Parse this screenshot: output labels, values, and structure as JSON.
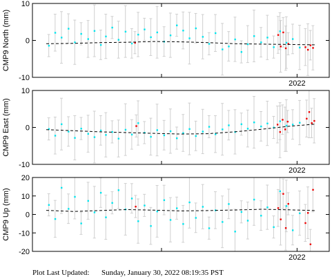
{
  "colors": {
    "normal_point": "#00e5ee",
    "recent_point": "#ee0000",
    "error_bar": "#cfcfcf",
    "trend_line": "#000000"
  },
  "footer": {
    "label": "Plot Last Updated:",
    "timestamp": "Sunday, January 30, 2022 08:19:35 PST"
  },
  "chart_data": [
    {
      "type": "scatter",
      "ylabel": "CMP9 North (mm)",
      "ylim": [
        -10,
        10
      ],
      "yticks": [
        10,
        0,
        -10
      ],
      "x_tick_label": "2022",
      "x_range": [
        "2020-12-01",
        "2022-01-30"
      ],
      "grid": false,
      "error_bars": true,
      "trend_line": "dashed",
      "series": [
        {
          "values": [
            [
              "2020-12-05",
              -1.4
            ],
            [
              "2020-12-15",
              2.1
            ],
            [
              "2020-12-25",
              0.8
            ],
            [
              "2021-01-05",
              3.2
            ],
            [
              "2021-01-15",
              -0.5
            ],
            [
              "2021-01-25",
              1.8
            ],
            [
              "2021-02-05",
              0.4
            ],
            [
              "2021-02-15",
              2.6
            ],
            [
              "2021-02-25",
              -1.2
            ],
            [
              "2021-03-05",
              1.1
            ],
            [
              "2021-03-15",
              3.5
            ],
            [
              "2021-03-25",
              0.2
            ],
            [
              "2021-04-05",
              2.4
            ],
            [
              "2021-04-15",
              -0.8
            ],
            [
              "2021-04-25",
              1.6
            ],
            [
              "2021-05-05",
              3.0
            ],
            [
              "2021-05-15",
              0.9
            ],
            [
              "2021-05-25",
              2.2
            ],
            [
              "2021-06-05",
              -0.3
            ],
            [
              "2021-06-15",
              1.4
            ],
            [
              "2021-06-25",
              4.1
            ],
            [
              "2021-07-05",
              2.7
            ],
            [
              "2021-07-15",
              0.6
            ],
            [
              "2021-07-25",
              3.3
            ],
            [
              "2021-08-05",
              1.0
            ],
            [
              "2021-08-15",
              -0.9
            ],
            [
              "2021-08-25",
              2.0
            ],
            [
              "2021-09-05",
              -2.4
            ],
            [
              "2021-09-15",
              -1.6
            ],
            [
              "2021-09-25",
              0.3
            ],
            [
              "2021-10-05",
              -3.1
            ],
            [
              "2021-10-15",
              -1.0
            ],
            [
              "2021-10-25",
              1.2
            ],
            [
              "2021-11-05",
              -0.5
            ],
            [
              "2021-11-15",
              0.8
            ],
            [
              "2021-11-25",
              -1.8
            ],
            [
              "2021-12-05",
              2.5
            ],
            [
              "2021-12-15",
              -0.6
            ],
            [
              "2021-12-25",
              0.4
            ],
            [
              "2022-01-05",
              -1.9
            ]
          ]
        },
        {
          "values": [
            [
              "2021-04-20",
              -0.6
            ],
            [
              "2021-12-02",
              1.5
            ],
            [
              "2021-12-06",
              -1.6
            ],
            [
              "2021-12-10",
              2.2
            ],
            [
              "2021-12-14",
              -2.1
            ],
            [
              "2021-12-18",
              -0.9
            ],
            [
              "2022-01-14",
              -1.8
            ],
            [
              "2022-01-18",
              -2.5
            ],
            [
              "2022-01-22",
              -1.3
            ],
            [
              "2022-01-26",
              -2.0
            ]
          ]
        }
      ],
      "trend": [
        -0.9,
        -0.8,
        -0.6,
        -0.5,
        -0.3,
        -0.4,
        -0.6,
        -0.9,
        -1.0,
        -1.1,
        -1.2
      ]
    },
    {
      "type": "scatter",
      "ylabel": "CMP9 East (mm)",
      "ylim": [
        -10,
        10
      ],
      "yticks": [
        10,
        0,
        -10
      ],
      "x_tick_label": "2022",
      "x_range": [
        "2020-12-01",
        "2022-01-30"
      ],
      "grid": false,
      "error_bars": true,
      "trend_line": "dashed",
      "series": [
        {
          "values": [
            [
              "2020-12-05",
              -0.4
            ],
            [
              "2020-12-15",
              -2.2
            ],
            [
              "2020-12-25",
              0.9
            ],
            [
              "2021-01-05",
              -1.1
            ],
            [
              "2021-01-15",
              -2.8
            ],
            [
              "2021-01-25",
              -0.3
            ],
            [
              "2021-02-05",
              -1.7
            ],
            [
              "2021-02-15",
              -2.6
            ],
            [
              "2021-02-25",
              -0.8
            ],
            [
              "2021-03-05",
              -2.0
            ],
            [
              "2021-03-15",
              -1.2
            ],
            [
              "2021-03-25",
              -3.0
            ],
            [
              "2021-04-05",
              -0.6
            ],
            [
              "2021-04-15",
              -1.9
            ],
            [
              "2021-04-25",
              1.2
            ],
            [
              "2021-05-05",
              -1.4
            ],
            [
              "2021-05-15",
              -2.5
            ],
            [
              "2021-05-25",
              -0.7
            ],
            [
              "2021-06-05",
              -2.1
            ],
            [
              "2021-06-15",
              -1.0
            ],
            [
              "2021-06-25",
              -2.9
            ],
            [
              "2021-07-05",
              -1.5
            ],
            [
              "2021-07-15",
              -0.4
            ],
            [
              "2021-07-25",
              -2.3
            ],
            [
              "2021-08-05",
              -1.1
            ],
            [
              "2021-08-15",
              0.2
            ],
            [
              "2021-08-25",
              -1.8
            ],
            [
              "2021-09-05",
              -0.5
            ],
            [
              "2021-09-15",
              0.6
            ],
            [
              "2021-09-25",
              -1.2
            ],
            [
              "2021-10-05",
              0.9
            ],
            [
              "2021-10-15",
              -0.3
            ],
            [
              "2021-10-25",
              1.4
            ],
            [
              "2021-11-05",
              0.3
            ],
            [
              "2021-11-15",
              1.1
            ],
            [
              "2021-11-25",
              0.0
            ],
            [
              "2021-12-05",
              1.7
            ],
            [
              "2021-12-15",
              0.5
            ],
            [
              "2021-12-25",
              0.8
            ],
            [
              "2022-01-05",
              1.3
            ]
          ]
        },
        {
          "values": [
            [
              "2021-04-22",
              0.4
            ],
            [
              "2021-12-01",
              0.8
            ],
            [
              "2021-12-05",
              -1.2
            ],
            [
              "2021-12-09",
              2.1
            ],
            [
              "2021-12-13",
              -0.5
            ],
            [
              "2021-12-17",
              1.6
            ],
            [
              "2022-01-16",
              2.4
            ],
            [
              "2022-01-20",
              4.2
            ],
            [
              "2022-01-24",
              1.2
            ],
            [
              "2022-01-28",
              1.8
            ]
          ]
        }
      ],
      "trend": [
        -0.6,
        -0.9,
        -1.2,
        -1.4,
        -1.6,
        -1.8,
        -1.7,
        -1.2,
        -0.5,
        0.3,
        0.9
      ]
    },
    {
      "type": "scatter",
      "ylabel": "CMP9 Up (mm)",
      "ylim": [
        -20,
        20
      ],
      "yticks": [
        20,
        10,
        0,
        -10,
        -20
      ],
      "x_tick_label": "2022",
      "x_range": [
        "2020-12-01",
        "2022-01-30"
      ],
      "grid": false,
      "error_bars": true,
      "trend_line": "dashed",
      "series": [
        {
          "values": [
            [
              "2020-12-05",
              5.2
            ],
            [
              "2020-12-15",
              -2.4
            ],
            [
              "2020-12-25",
              14.5
            ],
            [
              "2021-01-05",
              3.1
            ],
            [
              "2021-01-15",
              9.6
            ],
            [
              "2021-01-25",
              -4.8
            ],
            [
              "2021-02-05",
              7.4
            ],
            [
              "2021-02-15",
              1.2
            ],
            [
              "2021-02-25",
              11.8
            ],
            [
              "2021-03-05",
              -1.5
            ],
            [
              "2021-03-15",
              6.3
            ],
            [
              "2021-03-25",
              13.2
            ],
            [
              "2021-04-05",
              2.8
            ],
            [
              "2021-04-15",
              8.7
            ],
            [
              "2021-04-25",
              -3.6
            ],
            [
              "2021-05-05",
              4.9
            ],
            [
              "2021-05-15",
              -6.2
            ],
            [
              "2021-05-25",
              1.7
            ],
            [
              "2021-06-05",
              7.8
            ],
            [
              "2021-06-15",
              -2.9
            ],
            [
              "2021-06-25",
              3.4
            ],
            [
              "2021-07-05",
              -5.1
            ],
            [
              "2021-07-15",
              6.6
            ],
            [
              "2021-07-25",
              -1.8
            ],
            [
              "2021-08-05",
              4.2
            ],
            [
              "2021-08-15",
              -7.4
            ],
            [
              "2021-08-25",
              2.3
            ],
            [
              "2021-09-05",
              -4.0
            ],
            [
              "2021-09-15",
              5.7
            ],
            [
              "2021-09-25",
              -9.2
            ],
            [
              "2021-10-05",
              1.4
            ],
            [
              "2021-10-15",
              -3.3
            ],
            [
              "2021-10-25",
              8.1
            ],
            [
              "2021-11-05",
              -0.6
            ],
            [
              "2021-11-15",
              3.9
            ],
            [
              "2021-11-25",
              -6.8
            ],
            [
              "2021-12-05",
              12.6
            ],
            [
              "2021-12-15",
              4.6
            ],
            [
              "2021-12-25",
              -8.5
            ],
            [
              "2022-01-05",
              0.7
            ]
          ]
        },
        {
          "values": [
            [
              "2021-04-21",
              4.3
            ],
            [
              "2021-12-02",
              3.5
            ],
            [
              "2021-12-06",
              -2.6
            ],
            [
              "2021-12-10",
              11.2
            ],
            [
              "2021-12-14",
              -7.3
            ],
            [
              "2021-12-18",
              5.8
            ],
            [
              "2022-01-14",
              -4.6
            ],
            [
              "2022-01-18",
              0.9
            ],
            [
              "2022-01-22",
              -16.1
            ],
            [
              "2022-01-26",
              13.4
            ]
          ]
        }
      ],
      "trend": [
        2.2,
        1.6,
        2.1,
        2.6,
        2.3,
        1.9,
        2.1,
        2.4,
        2.8,
        2.5,
        2.1
      ]
    }
  ]
}
